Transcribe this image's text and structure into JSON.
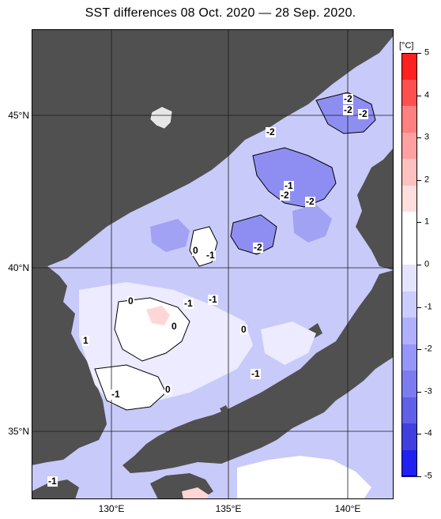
{
  "title": "SST differences 08 Oct. 2020 — 28 Sep. 2020.",
  "lat_labels": [
    "45°N",
    "40°N",
    "35°N"
  ],
  "lon_labels": [
    "130°E",
    "135°E",
    "140°E"
  ],
  "colorbar": {
    "unit": "[°C]",
    "ticks": [
      "5",
      "4",
      "3",
      "2",
      "1",
      "0",
      "-1",
      "-2",
      "-3",
      "-4",
      "-5"
    ],
    "colors": [
      "#ff2020",
      "#ff5050",
      "#ff8080",
      "#ffa0a0",
      "#ffc0c0",
      "#ffdede",
      "#ffffff",
      "#ffffff",
      "#e4e4ff",
      "#ccccff",
      "#b0b0ff",
      "#9696f8",
      "#7c7cf0",
      "#6060e8",
      "#4040e0",
      "#2020f0"
    ]
  },
  "colors": {
    "land": "#505050",
    "sea_base": "#c8cafa",
    "grid": "#1a1a1a"
  },
  "contour_labels": [
    "-2",
    "-2",
    "-2",
    "-2",
    "-1",
    "-2",
    "-2",
    "0",
    "-1",
    "-2",
    "-1",
    "-1",
    "0",
    "0",
    "1",
    "-1",
    "-1",
    "0",
    "0",
    "-1"
  ]
}
